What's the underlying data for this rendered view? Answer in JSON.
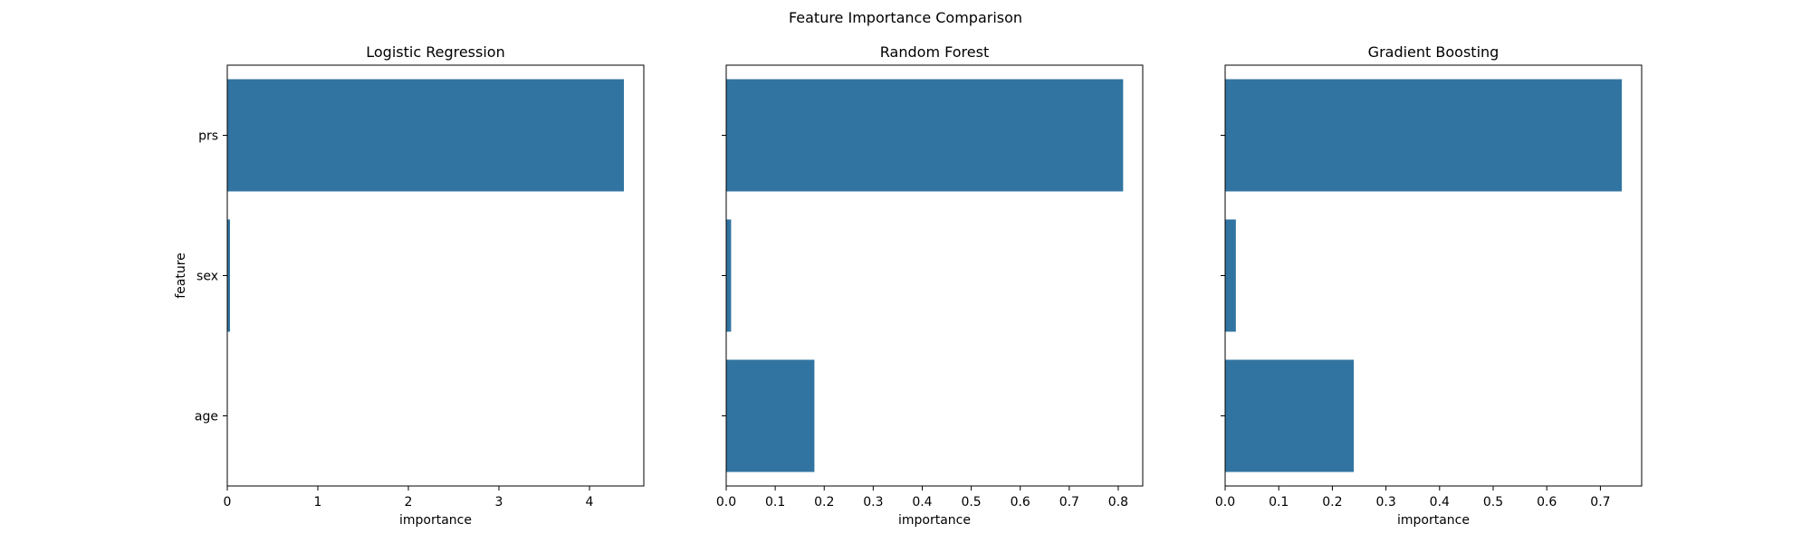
{
  "figure": {
    "title": "Feature Importance Comparison"
  },
  "colors": {
    "bar": "#3274a1",
    "axis": "#000000",
    "text": "#000000",
    "background": "#ffffff"
  },
  "chart_data": [
    {
      "type": "bar",
      "orientation": "horizontal",
      "title": "Logistic Regression",
      "xlabel": "importance",
      "ylabel": "feature",
      "categories": [
        "prs",
        "sex",
        "age"
      ],
      "values": [
        4.38,
        0.03,
        0.0
      ],
      "xlim": [
        0,
        4.6
      ],
      "xticks": [
        0,
        1,
        2,
        3,
        4
      ],
      "xtick_labels": [
        "0",
        "1",
        "2",
        "3",
        "4"
      ],
      "ytick_labels_shown": true,
      "grid": false
    },
    {
      "type": "bar",
      "orientation": "horizontal",
      "title": "Random Forest",
      "xlabel": "importance",
      "ylabel": "",
      "categories": [
        "prs",
        "sex",
        "age"
      ],
      "values": [
        0.81,
        0.01,
        0.18
      ],
      "xlim": [
        0,
        0.85
      ],
      "xticks": [
        0.0,
        0.1,
        0.2,
        0.3,
        0.4,
        0.5,
        0.6,
        0.7,
        0.8
      ],
      "xtick_labels": [
        "0.0",
        "0.1",
        "0.2",
        "0.3",
        "0.4",
        "0.5",
        "0.6",
        "0.7",
        "0.8"
      ],
      "ytick_labels_shown": false,
      "grid": false
    },
    {
      "type": "bar",
      "orientation": "horizontal",
      "title": "Gradient Boosting",
      "xlabel": "importance",
      "ylabel": "",
      "categories": [
        "prs",
        "sex",
        "age"
      ],
      "values": [
        0.74,
        0.02,
        0.24
      ],
      "xlim": [
        0,
        0.777
      ],
      "xticks": [
        0.0,
        0.1,
        0.2,
        0.3,
        0.4,
        0.5,
        0.6,
        0.7
      ],
      "xtick_labels": [
        "0.0",
        "0.1",
        "0.2",
        "0.3",
        "0.4",
        "0.5",
        "0.6",
        "0.7"
      ],
      "ytick_labels_shown": false,
      "grid": false
    }
  ]
}
